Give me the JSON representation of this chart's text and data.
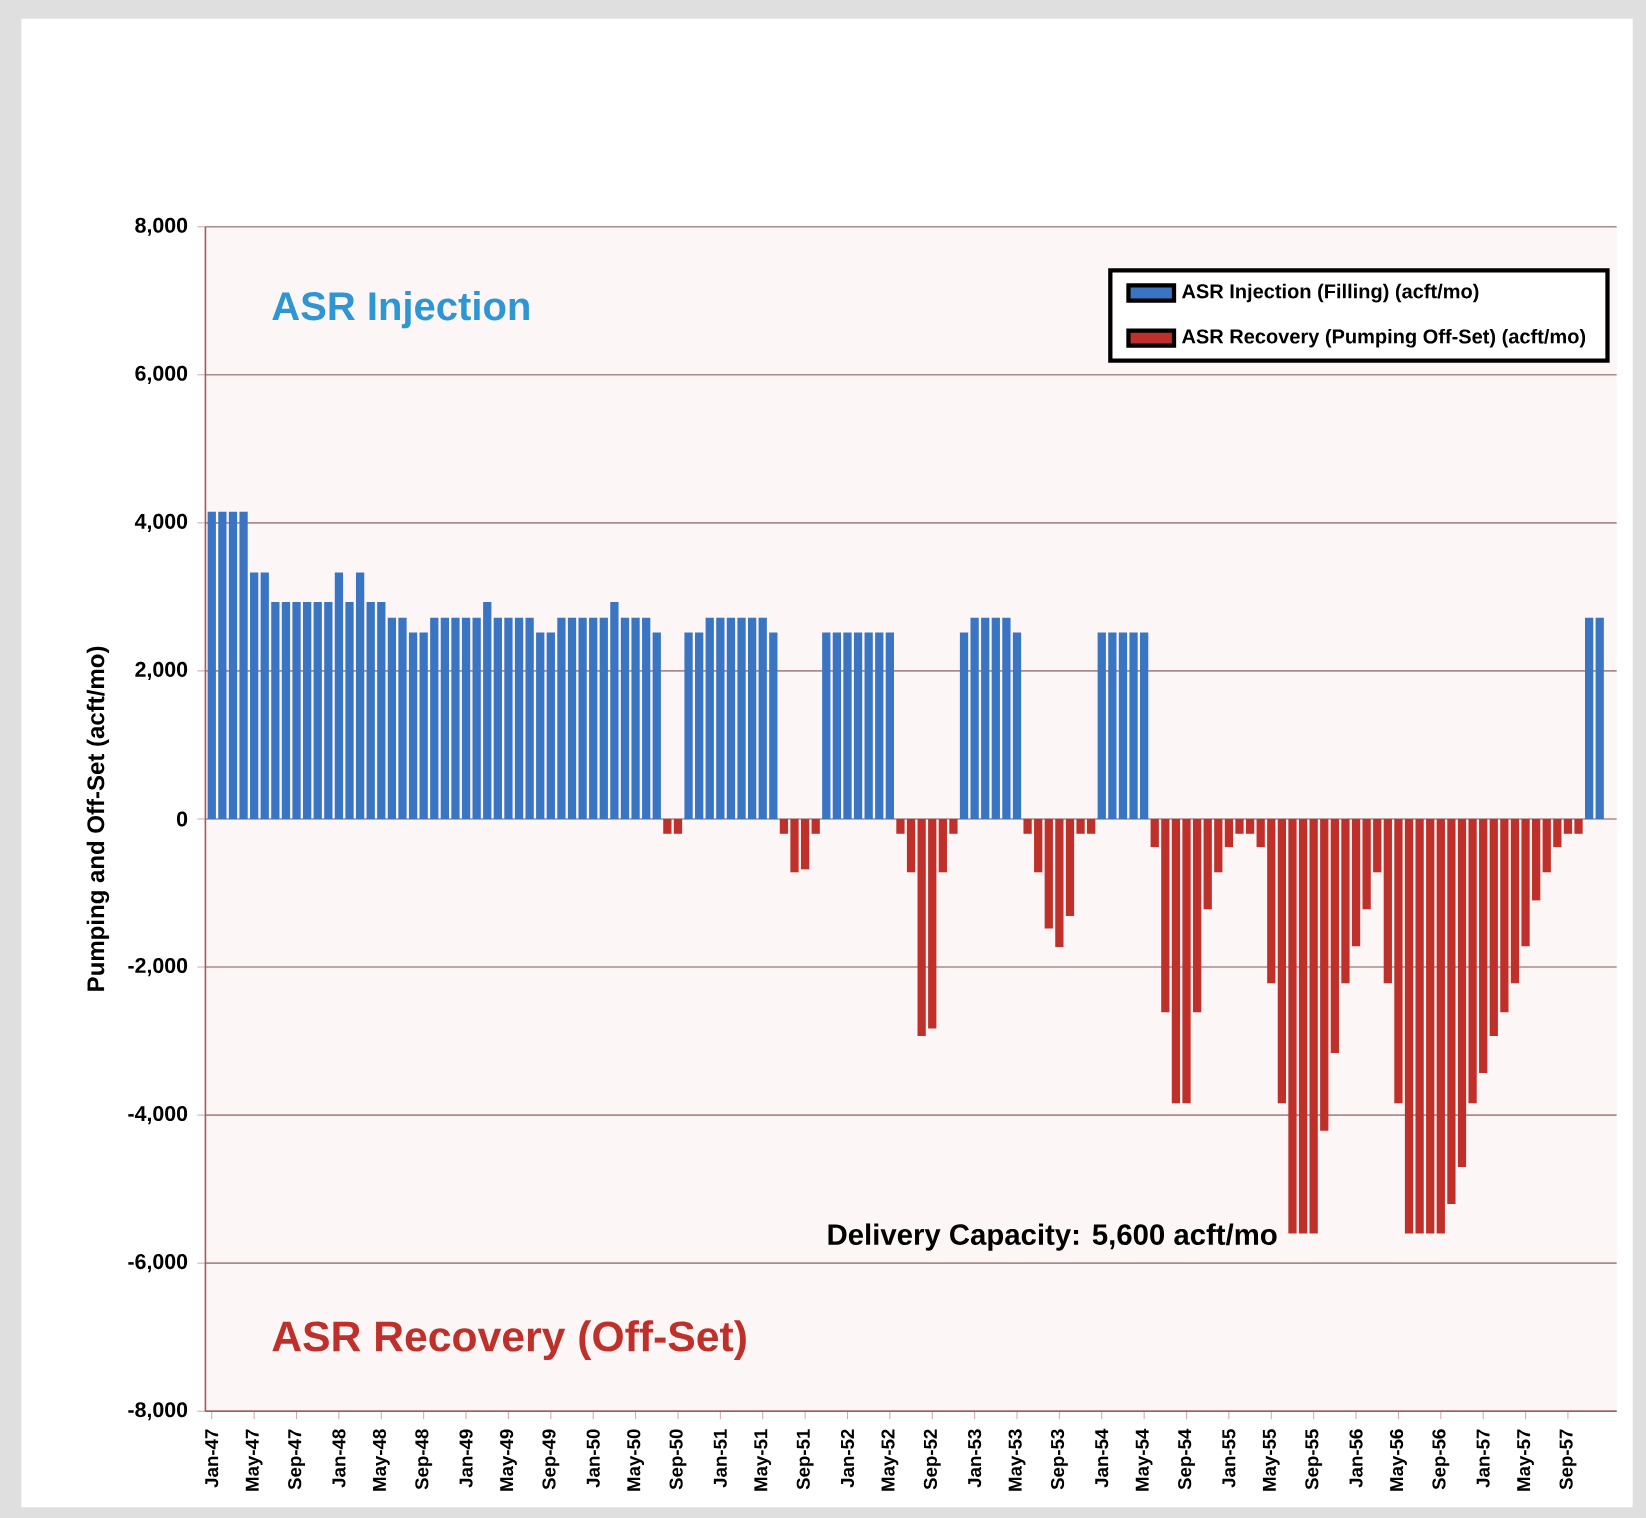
{
  "chart_data": {
    "type": "bar",
    "ylabel": "Pumping and Off-Set (acft/mo)",
    "categories": [
      "Jan-47",
      null,
      null,
      null,
      "May-47",
      null,
      null,
      null,
      "Sep-47",
      null,
      null,
      null,
      "Jan-48",
      null,
      null,
      null,
      "May-48",
      null,
      null,
      null,
      "Sep-48",
      null,
      null,
      null,
      "Jan-49",
      null,
      null,
      null,
      "May-49",
      null,
      null,
      null,
      "Sep-49",
      null,
      null,
      null,
      "Jan-50",
      null,
      null,
      null,
      "May-50",
      null,
      null,
      null,
      "Sep-50",
      null,
      null,
      null,
      "Jan-51",
      null,
      null,
      null,
      "May-51",
      null,
      null,
      null,
      "Sep-51",
      null,
      null,
      null,
      "Jan-52",
      null,
      null,
      null,
      "May-52",
      null,
      null,
      null,
      "Sep-52",
      null,
      null,
      null,
      "Jan-53",
      null,
      null,
      null,
      "May-53",
      null,
      null,
      null,
      "Sep-53",
      null,
      null,
      null,
      "Jan-54",
      null,
      null,
      null,
      "May-54",
      null,
      null,
      null,
      "Sep-54",
      null,
      null,
      null,
      "Jan-55",
      null,
      null,
      null,
      "May-55",
      null,
      null,
      null,
      "Sep-55",
      null,
      null,
      null,
      "Jan-56",
      null,
      null,
      null,
      "May-56",
      null,
      null,
      null,
      "Sep-56",
      null,
      null,
      null,
      "Jan-57",
      null,
      null,
      null,
      "May-57",
      null,
      null,
      null,
      "Sep-57",
      null,
      null,
      null
    ],
    "series": [
      {
        "name": "ASR Injection (Filling) (acft/mo)",
        "color": "#3a75c4",
        "values": [
          4150,
          4150,
          4150,
          4150,
          3330,
          3330,
          2930,
          2930,
          2930,
          2930,
          2930,
          2930,
          3330,
          2930,
          3330,
          2930,
          2930,
          2720,
          2720,
          2520,
          2520,
          2720,
          2720,
          2720,
          2720,
          2720,
          2930,
          2720,
          2720,
          2720,
          2720,
          2520,
          2520,
          2720,
          2720,
          2720,
          2720,
          2720,
          2930,
          2720,
          2720,
          2720,
          2520,
          null,
          null,
          2520,
          2520,
          2720,
          2720,
          2720,
          2720,
          2720,
          2720,
          2520,
          null,
          null,
          null,
          null,
          2520,
          2520,
          2520,
          2520,
          2520,
          2520,
          2520,
          null,
          null,
          null,
          null,
          null,
          null,
          2520,
          2720,
          2720,
          2720,
          2720,
          2520,
          null,
          null,
          null,
          null,
          null,
          null,
          null,
          2520,
          2520,
          2520,
          2520,
          2520,
          null,
          null,
          null,
          null,
          null,
          null,
          null,
          null,
          null,
          null,
          null,
          null,
          null,
          null,
          null,
          null,
          null,
          null,
          null,
          null,
          null,
          null,
          null,
          null,
          null,
          null,
          null,
          null,
          null,
          null,
          null,
          null,
          null,
          null,
          null,
          null,
          null,
          null,
          null,
          null,
          null,
          2720,
          2720
        ]
      },
      {
        "name": "ASR Recovery (Pumping Off-Set) (acft/mo)",
        "color": "#c0302a",
        "values": [
          null,
          null,
          null,
          null,
          null,
          null,
          null,
          null,
          null,
          null,
          null,
          null,
          null,
          null,
          null,
          null,
          null,
          null,
          null,
          null,
          null,
          null,
          null,
          null,
          null,
          null,
          null,
          null,
          null,
          null,
          null,
          null,
          null,
          null,
          null,
          null,
          null,
          null,
          null,
          null,
          null,
          null,
          null,
          -200,
          -200,
          null,
          null,
          null,
          null,
          null,
          null,
          null,
          null,
          null,
          -200,
          -720,
          -680,
          -200,
          null,
          null,
          null,
          null,
          null,
          null,
          null,
          -200,
          -720,
          -2930,
          -2830,
          -720,
          -200,
          null,
          null,
          null,
          null,
          null,
          null,
          -200,
          -720,
          -1480,
          -1730,
          -1310,
          -200,
          -200,
          null,
          null,
          null,
          null,
          null,
          -380,
          -2610,
          -3840,
          -3840,
          -2610,
          -1220,
          -720,
          -380,
          -200,
          -200,
          -380,
          -2220,
          -3840,
          -5600,
          -5600,
          -5600,
          -4210,
          -3160,
          -2220,
          -1720,
          -1220,
          -720,
          -2220,
          -3840,
          -5600,
          -5600,
          -5600,
          -5600,
          -5200,
          -4700,
          -3840,
          -3430,
          -2930,
          -2610,
          -2220,
          -1720,
          -1100,
          -720,
          -380,
          -200,
          -200,
          null,
          null
        ]
      }
    ],
    "ylim": [
      -8000,
      8000
    ],
    "yticks": [
      {
        "value": -8000,
        "label": "-8,000"
      },
      {
        "value": -6000,
        "label": "-6,000"
      },
      {
        "value": -4000,
        "label": "-4,000"
      },
      {
        "value": -2000,
        "label": "-2,000"
      },
      0,
      {
        "value": 2000,
        "label": "2,000"
      },
      {
        "value": 4000,
        "label": "4,000"
      },
      {
        "value": 6000,
        "label": "6,000"
      },
      {
        "value": 8000,
        "label": "8,000"
      }
    ],
    "stacked": true,
    "grid": "y",
    "legend": "top right",
    "annotations": [
      "ASR Injection",
      "ASR Recovery (Off-Set)",
      "Delivery Capacity: 5,600 acft/mo"
    ]
  }
}
